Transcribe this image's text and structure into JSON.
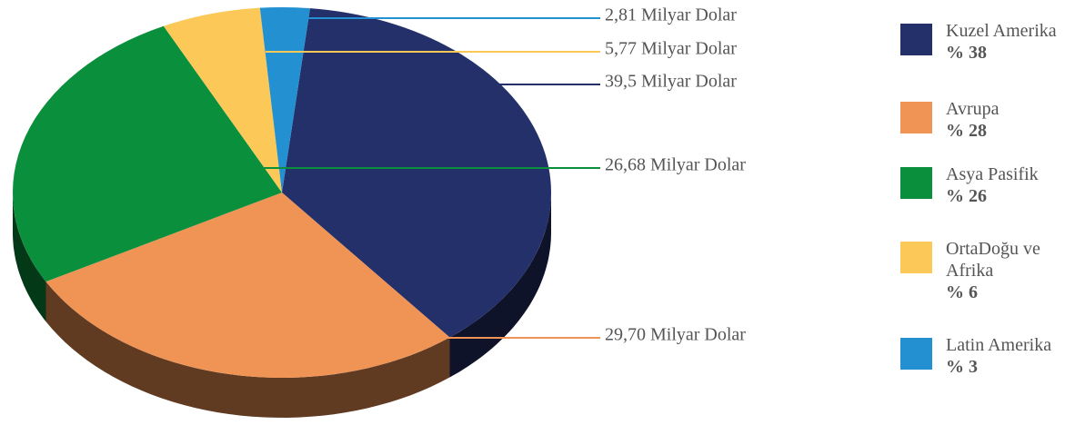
{
  "chart_data": {
    "type": "pie",
    "categories": [
      "Kuzel Amerika",
      "Avrupa",
      "Asya Pasifik",
      "OrtaDoğu ve Afrika",
      "Latin Amerika"
    ],
    "values": [
      38,
      28,
      26,
      6,
      3
    ],
    "value_labels": [
      "% 38",
      "% 28",
      "% 26",
      "% 6",
      "% 3"
    ],
    "amounts": [
      39.5,
      29.7,
      26.68,
      5.77,
      2.81
    ],
    "amount_labels": [
      "39,5 Milyar Dolar",
      "29,70 Milyar Dolar",
      "26,68 Milyar Dolar",
      "5,77 Milyar Dolar",
      "2,81 Milyar Dolar"
    ],
    "colors": [
      "#24306a",
      "#f09456",
      "#0a8f3c",
      "#fcc958",
      "#2390d2"
    ],
    "legend": "right"
  }
}
